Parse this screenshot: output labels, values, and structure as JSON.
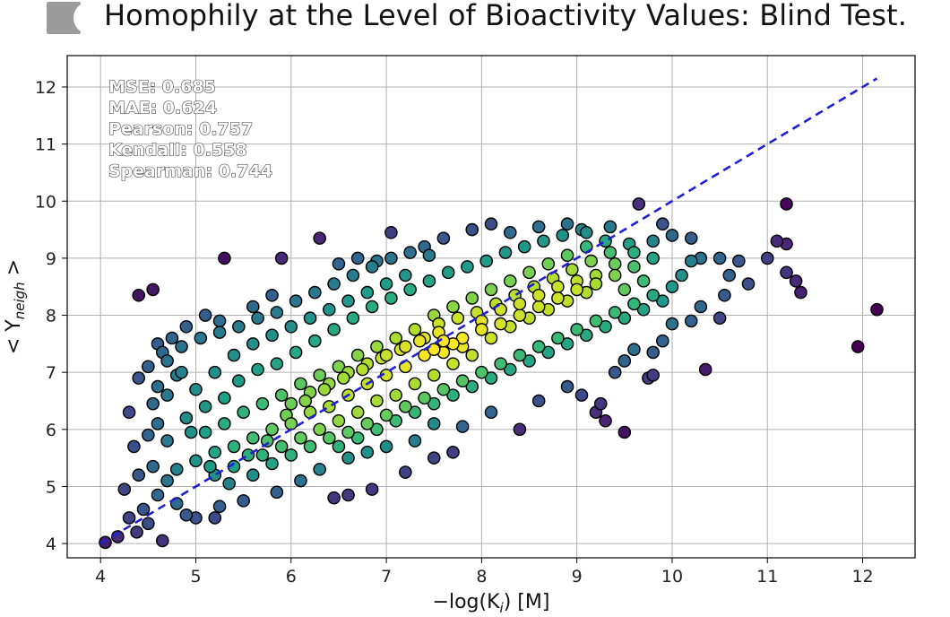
{
  "chart_data": {
    "type": "scatter",
    "title": "Homophily at the Level of Bioactivity Values: Blind Test.",
    "xlabel": "−log(K",
    "xlabel_sub": "i",
    "xlabel_suffix": ") [M]",
    "ylabel": "< Y",
    "ylabel_sub": "neigh",
    "ylabel_suffix": " >",
    "xlim": [
      3.65,
      12.55
    ],
    "ylim": [
      3.75,
      12.55
    ],
    "xticks": [
      4,
      5,
      6,
      7,
      8,
      9,
      10,
      11,
      12
    ],
    "yticks": [
      4,
      5,
      6,
      7,
      8,
      9,
      10,
      11,
      12
    ],
    "grid": true,
    "colormap": "viridis",
    "color_meaning": "point density",
    "marker_edge_color": "#000000",
    "stats": [
      "MSE: 0.685",
      "MAE: 0.624",
      "Pearson: 0.757",
      "Kendall: 0.558",
      "Spearman: 0.744"
    ],
    "reference_line": {
      "x": [
        4.0,
        12.15
      ],
      "y": [
        4.0,
        12.15
      ],
      "color": "#1f1fd6",
      "style": "dashed"
    },
    "points": [
      [
        4.05,
        4.02
      ],
      [
        4.18,
        4.12
      ],
      [
        4.38,
        4.2
      ],
      [
        4.5,
        4.35
      ],
      [
        4.65,
        4.05
      ],
      [
        4.3,
        4.45
      ],
      [
        4.45,
        4.6
      ],
      [
        4.25,
        4.95
      ],
      [
        4.6,
        4.85
      ],
      [
        4.8,
        4.7
      ],
      [
        4.9,
        4.5
      ],
      [
        5.0,
        4.45
      ],
      [
        5.2,
        4.45
      ],
      [
        4.4,
        5.2
      ],
      [
        4.55,
        5.35
      ],
      [
        4.7,
        5.1
      ],
      [
        4.35,
        5.7
      ],
      [
        4.5,
        5.9
      ],
      [
        4.6,
        6.1
      ],
      [
        4.3,
        6.3
      ],
      [
        4.55,
        6.45
      ],
      [
        4.7,
        6.6
      ],
      [
        4.4,
        6.9
      ],
      [
        4.5,
        7.1
      ],
      [
        4.7,
        7.2
      ],
      [
        4.85,
        7.0
      ],
      [
        4.6,
        7.5
      ],
      [
        4.75,
        7.6
      ],
      [
        4.9,
        7.8
      ],
      [
        5.1,
        8.0
      ],
      [
        5.25,
        7.9
      ],
      [
        4.4,
        8.35
      ],
      [
        4.55,
        8.45
      ],
      [
        5.6,
        8.15
      ],
      [
        5.8,
        8.35
      ],
      [
        5.3,
        9.0
      ],
      [
        5.9,
        9.0
      ],
      [
        6.3,
        9.35
      ],
      [
        6.5,
        8.9
      ],
      [
        6.7,
        9.0
      ],
      [
        6.9,
        8.95
      ],
      [
        7.05,
        9.45
      ],
      [
        7.4,
        9.2
      ],
      [
        7.6,
        9.35
      ],
      [
        7.9,
        9.5
      ],
      [
        8.1,
        9.6
      ],
      [
        8.3,
        9.45
      ],
      [
        8.6,
        9.55
      ],
      [
        8.9,
        9.6
      ],
      [
        9.1,
        9.45
      ],
      [
        9.35,
        9.55
      ],
      [
        9.65,
        9.95
      ],
      [
        9.9,
        9.6
      ],
      [
        10.0,
        9.4
      ],
      [
        10.2,
        9.35
      ],
      [
        10.3,
        9.0
      ],
      [
        10.5,
        9.0
      ],
      [
        10.6,
        8.7
      ],
      [
        10.7,
        8.95
      ],
      [
        10.8,
        8.55
      ],
      [
        10.55,
        8.35
      ],
      [
        10.3,
        8.15
      ],
      [
        10.5,
        7.95
      ],
      [
        10.2,
        7.9
      ],
      [
        10.0,
        7.85
      ],
      [
        9.9,
        7.55
      ],
      [
        9.8,
        7.35
      ],
      [
        9.6,
        7.4
      ],
      [
        9.5,
        7.2
      ],
      [
        9.4,
        7.0
      ],
      [
        9.75,
        6.9
      ],
      [
        9.8,
        6.95
      ],
      [
        10.35,
        7.05
      ],
      [
        9.2,
        6.3
      ],
      [
        9.3,
        6.15
      ],
      [
        9.25,
        6.45
      ],
      [
        9.5,
        5.95
      ],
      [
        9.05,
        6.6
      ],
      [
        8.9,
        6.75
      ],
      [
        8.6,
        6.5
      ],
      [
        8.4,
        6.0
      ],
      [
        8.1,
        6.3
      ],
      [
        7.8,
        6.05
      ],
      [
        7.5,
        6.1
      ],
      [
        7.3,
        5.8
      ],
      [
        7.0,
        5.7
      ],
      [
        6.8,
        5.6
      ],
      [
        6.6,
        5.5
      ],
      [
        6.3,
        5.3
      ],
      [
        6.1,
        5.1
      ],
      [
        5.85,
        4.9
      ],
      [
        5.5,
        4.75
      ],
      [
        5.25,
        4.65
      ],
      [
        6.45,
        4.8
      ],
      [
        6.6,
        4.85
      ],
      [
        6.85,
        4.95
      ],
      [
        7.2,
        5.25
      ],
      [
        7.5,
        5.5
      ],
      [
        7.7,
        5.6
      ],
      [
        11.0,
        9.0
      ],
      [
        11.1,
        9.3
      ],
      [
        11.2,
        9.25
      ],
      [
        11.2,
        8.75
      ],
      [
        11.3,
        8.6
      ],
      [
        11.35,
        8.4
      ],
      [
        11.2,
        9.95
      ],
      [
        12.15,
        8.1
      ],
      [
        11.95,
        7.45
      ],
      [
        7.5,
        7.4
      ],
      [
        7.6,
        7.55
      ],
      [
        7.7,
        7.5
      ],
      [
        7.8,
        7.6
      ],
      [
        7.55,
        7.7
      ],
      [
        7.4,
        7.3
      ],
      [
        7.2,
        7.1
      ],
      [
        7.0,
        6.95
      ],
      [
        6.8,
        6.8
      ],
      [
        6.6,
        6.6
      ],
      [
        6.4,
        6.4
      ],
      [
        6.2,
        6.3
      ],
      [
        6.0,
        6.1
      ],
      [
        5.8,
        6.0
      ],
      [
        5.6,
        5.85
      ],
      [
        5.4,
        5.7
      ],
      [
        5.2,
        5.6
      ],
      [
        5.0,
        5.45
      ],
      [
        4.8,
        5.3
      ],
      [
        8.0,
        7.9
      ],
      [
        8.2,
        8.1
      ],
      [
        8.4,
        8.2
      ],
      [
        8.6,
        8.35
      ],
      [
        8.8,
        8.5
      ],
      [
        9.0,
        8.6
      ],
      [
        9.2,
        8.7
      ],
      [
        9.4,
        8.9
      ],
      [
        9.6,
        9.1
      ],
      [
        9.8,
        9.3
      ],
      [
        7.9,
        7.3
      ],
      [
        7.7,
        7.15
      ],
      [
        7.5,
        6.95
      ],
      [
        7.3,
        6.8
      ],
      [
        7.1,
        6.6
      ],
      [
        6.9,
        6.5
      ],
      [
        6.7,
        6.3
      ],
      [
        6.5,
        6.15
      ],
      [
        6.3,
        6.0
      ],
      [
        6.1,
        5.85
      ],
      [
        5.9,
        5.7
      ],
      [
        5.7,
        5.55
      ],
      [
        8.1,
        7.6
      ],
      [
        8.3,
        7.8
      ],
      [
        8.5,
        7.95
      ],
      [
        8.7,
        8.1
      ],
      [
        8.9,
        8.25
      ],
      [
        9.1,
        8.4
      ],
      [
        7.3,
        7.75
      ],
      [
        7.1,
        7.6
      ],
      [
        6.9,
        7.45
      ],
      [
        6.7,
        7.3
      ],
      [
        6.5,
        7.1
      ],
      [
        6.3,
        6.95
      ],
      [
        6.1,
        6.8
      ],
      [
        5.9,
        6.6
      ],
      [
        5.7,
        6.45
      ],
      [
        5.5,
        6.3
      ],
      [
        5.3,
        6.1
      ],
      [
        5.1,
        5.95
      ],
      [
        7.5,
        8.0
      ],
      [
        7.7,
        8.15
      ],
      [
        7.9,
        8.3
      ],
      [
        8.1,
        8.45
      ],
      [
        8.3,
        8.6
      ],
      [
        8.5,
        8.75
      ],
      [
        8.7,
        8.9
      ],
      [
        8.9,
        9.05
      ],
      [
        9.1,
        9.2
      ],
      [
        9.3,
        9.3
      ],
      [
        5.0,
        6.7
      ],
      [
        5.2,
        7.0
      ],
      [
        5.4,
        7.3
      ],
      [
        5.6,
        7.5
      ],
      [
        5.8,
        7.65
      ],
      [
        6.0,
        7.8
      ],
      [
        6.2,
        7.95
      ],
      [
        6.4,
        8.1
      ],
      [
        6.6,
        8.25
      ],
      [
        6.8,
        8.4
      ],
      [
        7.0,
        8.55
      ],
      [
        7.2,
        8.7
      ],
      [
        5.2,
        5.2
      ],
      [
        5.4,
        5.35
      ],
      [
        5.6,
        5.2
      ],
      [
        5.8,
        5.4
      ],
      [
        6.0,
        5.55
      ],
      [
        6.2,
        5.7
      ],
      [
        6.4,
        5.85
      ],
      [
        6.6,
        5.95
      ],
      [
        6.8,
        6.1
      ],
      [
        7.0,
        6.25
      ],
      [
        7.2,
        6.4
      ],
      [
        7.4,
        6.55
      ],
      [
        7.6,
        6.7
      ],
      [
        7.8,
        6.85
      ],
      [
        8.0,
        7.0
      ],
      [
        8.2,
        7.15
      ],
      [
        8.4,
        7.3
      ],
      [
        8.6,
        7.45
      ],
      [
        8.8,
        7.6
      ],
      [
        9.0,
        7.75
      ],
      [
        9.2,
        7.9
      ],
      [
        9.4,
        8.05
      ],
      [
        9.6,
        8.2
      ],
      [
        9.8,
        8.35
      ],
      [
        10.0,
        8.5
      ],
      [
        10.1,
        8.7
      ],
      [
        10.2,
        8.95
      ],
      [
        9.7,
        8.6
      ],
      [
        9.5,
        8.45
      ],
      [
        4.9,
        6.2
      ],
      [
        5.1,
        6.4
      ],
      [
        5.3,
        6.55
      ],
      [
        4.7,
        5.8
      ],
      [
        4.95,
        5.95
      ],
      [
        5.15,
        5.35
      ],
      [
        5.35,
        5.05
      ],
      [
        5.55,
        5.55
      ],
      [
        5.75,
        5.8
      ],
      [
        5.95,
        6.25
      ],
      [
        6.15,
        6.5
      ],
      [
        6.35,
        6.7
      ],
      [
        6.55,
        6.9
      ],
      [
        6.75,
        7.05
      ],
      [
        6.95,
        7.25
      ],
      [
        7.15,
        7.4
      ],
      [
        7.35,
        7.55
      ],
      [
        7.55,
        7.85
      ],
      [
        7.75,
        7.95
      ],
      [
        7.95,
        8.05
      ],
      [
        8.15,
        8.2
      ],
      [
        8.35,
        8.35
      ],
      [
        8.55,
        8.5
      ],
      [
        8.75,
        8.65
      ],
      [
        8.95,
        8.8
      ],
      [
        9.15,
        8.95
      ],
      [
        9.35,
        9.1
      ],
      [
        9.55,
        9.25
      ],
      [
        5.45,
        6.85
      ],
      [
        5.65,
        7.05
      ],
      [
        5.85,
        7.15
      ],
      [
        6.05,
        7.35
      ],
      [
        6.25,
        7.55
      ],
      [
        6.45,
        7.75
      ],
      [
        6.65,
        7.95
      ],
      [
        6.85,
        8.15
      ],
      [
        7.05,
        8.3
      ],
      [
        7.25,
        8.45
      ],
      [
        7.45,
        8.6
      ],
      [
        7.65,
        8.75
      ],
      [
        7.85,
        8.85
      ],
      [
        8.05,
        8.95
      ],
      [
        8.25,
        9.1
      ],
      [
        8.45,
        9.2
      ],
      [
        8.65,
        9.3
      ],
      [
        8.85,
        9.4
      ],
      [
        9.05,
        9.5
      ],
      [
        6.0,
        6.45
      ],
      [
        6.2,
        6.65
      ],
      [
        6.4,
        6.8
      ],
      [
        6.6,
        7.0
      ],
      [
        6.8,
        7.15
      ],
      [
        7.0,
        7.3
      ],
      [
        7.2,
        7.45
      ],
      [
        7.4,
        7.6
      ],
      [
        7.6,
        7.35
      ],
      [
        7.8,
        7.45
      ],
      [
        8.0,
        7.75
      ],
      [
        8.2,
        7.85
      ],
      [
        8.4,
        8.0
      ],
      [
        8.6,
        8.15
      ],
      [
        8.8,
        8.3
      ],
      [
        9.0,
        8.45
      ],
      [
        9.2,
        8.55
      ],
      [
        9.4,
        8.7
      ],
      [
        9.6,
        8.85
      ],
      [
        9.8,
        9.0
      ],
      [
        6.5,
        5.7
      ],
      [
        6.7,
        5.85
      ],
      [
        6.9,
        6.0
      ],
      [
        7.1,
        6.15
      ],
      [
        7.3,
        6.3
      ],
      [
        7.5,
        6.45
      ],
      [
        7.7,
        6.6
      ],
      [
        7.9,
        6.75
      ],
      [
        8.1,
        6.9
      ],
      [
        8.3,
        7.05
      ],
      [
        8.5,
        7.2
      ],
      [
        8.7,
        7.35
      ],
      [
        8.9,
        7.5
      ],
      [
        9.1,
        7.65
      ],
      [
        9.3,
        7.8
      ],
      [
        9.5,
        7.95
      ],
      [
        9.7,
        8.1
      ],
      [
        9.9,
        8.25
      ],
      [
        4.6,
        6.75
      ],
      [
        4.8,
        6.95
      ],
      [
        4.65,
        7.35
      ],
      [
        4.85,
        7.45
      ],
      [
        5.05,
        7.6
      ],
      [
        5.25,
        7.7
      ],
      [
        5.45,
        7.8
      ],
      [
        5.65,
        7.95
      ],
      [
        5.85,
        8.05
      ],
      [
        6.05,
        8.25
      ],
      [
        6.25,
        8.4
      ],
      [
        6.45,
        8.55
      ],
      [
        6.65,
        8.7
      ],
      [
        6.85,
        8.85
      ],
      [
        7.05,
        9.0
      ],
      [
        7.25,
        9.1
      ],
      [
        7.45,
        9.05
      ]
    ]
  }
}
